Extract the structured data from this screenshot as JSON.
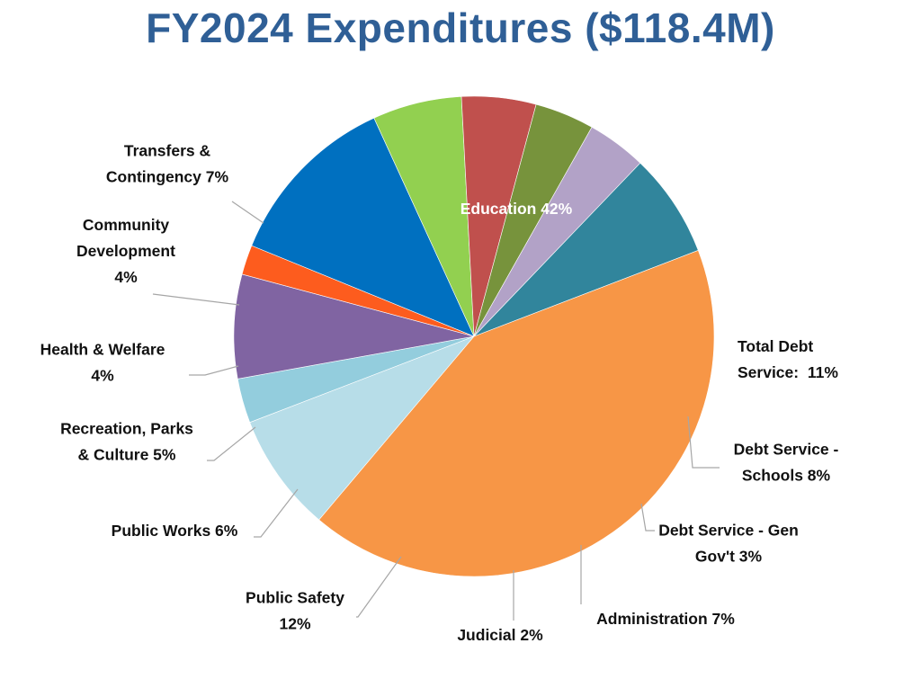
{
  "title": "FY2024 Expenditures ($118.4M)",
  "chart_data": {
    "type": "pie",
    "title": "FY2024 Expenditures ($118.4M)",
    "slices": [
      {
        "label": "Education 42%",
        "lines": [
          "Education 42%"
        ],
        "value": 42,
        "color": "#f79646"
      },
      {
        "label": "Debt Service - Schools 8%",
        "lines": [
          "Debt Service -",
          "Schools 8%"
        ],
        "value": 8,
        "color": "#b7dde8"
      },
      {
        "label": "Debt Service - Gen Gov't 3%",
        "lines": [
          "Debt Service - Gen",
          "Gov't 3%"
        ],
        "value": 3,
        "color": "#93cddd"
      },
      {
        "label": "Administration 7%",
        "lines": [
          "Administration 7%"
        ],
        "value": 7,
        "color": "#8064a2"
      },
      {
        "label": "Judicial 2%",
        "lines": [
          "Judicial 2%"
        ],
        "value": 2,
        "color": "#fd5c1e"
      },
      {
        "label": "Public Safety 12%",
        "lines": [
          "Public Safety",
          "12%"
        ],
        "value": 12,
        "color": "#0070c0"
      },
      {
        "label": "Public Works 6%",
        "lines": [
          "Public Works 6%"
        ],
        "value": 6,
        "color": "#92d050"
      },
      {
        "label": "Recreation, Parks & Culture 5%",
        "lines": [
          "Recreation, Parks",
          "& Culture 5%"
        ],
        "value": 5,
        "color": "#c0504d"
      },
      {
        "label": "Health & Welfare 4%",
        "lines": [
          "Health & Welfare",
          "4%"
        ],
        "value": 4,
        "color": "#77933c"
      },
      {
        "label": "Community Development 4%",
        "lines": [
          "Community",
          "Development",
          "4%"
        ],
        "value": 4,
        "color": "#b2a2c7"
      },
      {
        "label": "Transfers & Contingency 7%",
        "lines": [
          "Transfers &",
          "Contingency 7%"
        ],
        "value": 7,
        "color": "#31859c"
      }
    ],
    "group_label": {
      "lines": [
        "Total Debt",
        "Service:  11%"
      ],
      "value": 11
    }
  }
}
